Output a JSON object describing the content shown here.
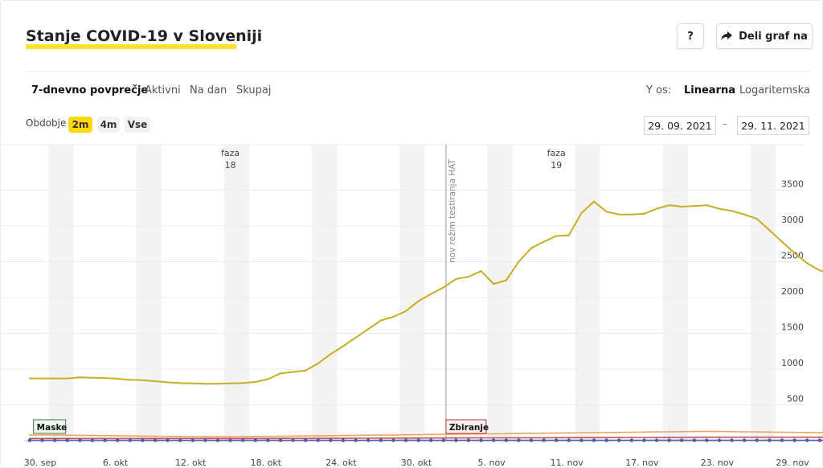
{
  "header": {
    "title": "Stanje COVID-19 v Sloveniji",
    "help_label": "?",
    "share_label": "Deli graf na"
  },
  "tabs": [
    {
      "label": "7-dnevno povprečje",
      "active": true
    },
    {
      "label": "Aktivni",
      "active": false
    },
    {
      "label": "Na dan",
      "active": false
    },
    {
      "label": "Skupaj",
      "active": false
    }
  ],
  "yaxis_toggle": {
    "label": "Y os:",
    "options": [
      {
        "label": "Linearna",
        "active": true
      },
      {
        "label": "Logaritemska",
        "active": false
      }
    ]
  },
  "period": {
    "label": "Obdobje",
    "options": [
      {
        "label": "2m",
        "active": true
      },
      {
        "label": "4m",
        "active": false
      },
      {
        "label": "Vse",
        "active": false
      }
    ]
  },
  "date_range": {
    "from": "29. 09. 2021",
    "separator": "–",
    "to": "29. 11. 2021"
  },
  "colors": {
    "accent": "#ffd90e",
    "main_line": "#c6ae25",
    "lower_line": "#e8a66a",
    "hosp_line": "#c9504d",
    "zero_line": "#4f5aa8"
  },
  "chart_data": {
    "type": "line",
    "x_start": "2021-09-30",
    "xtick_labels": [
      "30. sep",
      "6. okt",
      "12. okt",
      "18. okt",
      "24. okt",
      "30. okt",
      "5. nov",
      "11. nov",
      "17. nov",
      "23. nov",
      "29. nov"
    ],
    "ytick_labels": [
      "500",
      "1000",
      "1500",
      "2000",
      "2500",
      "3000",
      "3500"
    ],
    "ylim": [
      0,
      4000
    ],
    "phases": [
      {
        "label_line1": "faza",
        "label_line2": "18",
        "day": 16
      },
      {
        "label_line1": "faza",
        "label_line2": "19",
        "day": 42
      }
    ],
    "vline": {
      "day": 33.2,
      "label": "nov režim testiranja HAT"
    },
    "annotations": [
      {
        "label": "Maske",
        "day": 0.3
      },
      {
        "label": "Zbiranje",
        "day": 33.2
      }
    ],
    "series": [
      {
        "name": "",
        "values": [
          870,
          870,
          870,
          870,
          885,
          880,
          875,
          865,
          850,
          845,
          830,
          815,
          805,
          800,
          795,
          795,
          800,
          805,
          820,
          860,
          940,
          960,
          980,
          1080,
          1210,
          1320,
          1440,
          1560,
          1680,
          1730,
          1810,
          1950,
          2050,
          2140,
          2260,
          2290,
          2370,
          2190,
          2240,
          2500,
          2690,
          2780,
          2860,
          2870,
          3180,
          3340,
          3200,
          3160,
          3160,
          3170,
          3240,
          3290,
          3270,
          3280,
          3290,
          3240,
          3210,
          3160,
          3100,
          2940,
          2780,
          2620,
          2480,
          2380,
          2330
        ]
      },
      {
        "name": "",
        "values": [
          80,
          80,
          78,
          76,
          74,
          72,
          70,
          68,
          66,
          64,
          62,
          60,
          58,
          56,
          55,
          55,
          56,
          57,
          58,
          60,
          62,
          64,
          66,
          68,
          70,
          72,
          74,
          76,
          78,
          80,
          82,
          84,
          86,
          88,
          90,
          92,
          94,
          96,
          98,
          100,
          102,
          104,
          106,
          108,
          110,
          112,
          114,
          116,
          118,
          120,
          122,
          124,
          126,
          128,
          130,
          128,
          126,
          124,
          122,
          120,
          118,
          116,
          114,
          112,
          110
        ]
      },
      {
        "name": "",
        "values": [
          30,
          30,
          30,
          30,
          30,
          30,
          30,
          30,
          30,
          30,
          30,
          30,
          30,
          30,
          30,
          30,
          30,
          30,
          30,
          30,
          31,
          31,
          32,
          32,
          33,
          33,
          34,
          34,
          35,
          35,
          36,
          36,
          37,
          37,
          38,
          38,
          39,
          39,
          40,
          40,
          41,
          41,
          42,
          42,
          43,
          43,
          44,
          44,
          45,
          45,
          46,
          46,
          47,
          47,
          48,
          48,
          48,
          48,
          48,
          48,
          48,
          48,
          48,
          48,
          48
        ]
      },
      {
        "name": "",
        "values": [
          5,
          5,
          5,
          5,
          5,
          5,
          5,
          5,
          5,
          5,
          5,
          5,
          5,
          5,
          5,
          5,
          5,
          5,
          5,
          5,
          5,
          5,
          5,
          5,
          5,
          5,
          5,
          5,
          5,
          5,
          5,
          5,
          5,
          5,
          5,
          5,
          5,
          5,
          5,
          5,
          5,
          5,
          5,
          5,
          5,
          5,
          5,
          5,
          5,
          5,
          5,
          5,
          5,
          5,
          5,
          5,
          5,
          5,
          5,
          5,
          5,
          5,
          5,
          5,
          5
        ]
      }
    ]
  }
}
